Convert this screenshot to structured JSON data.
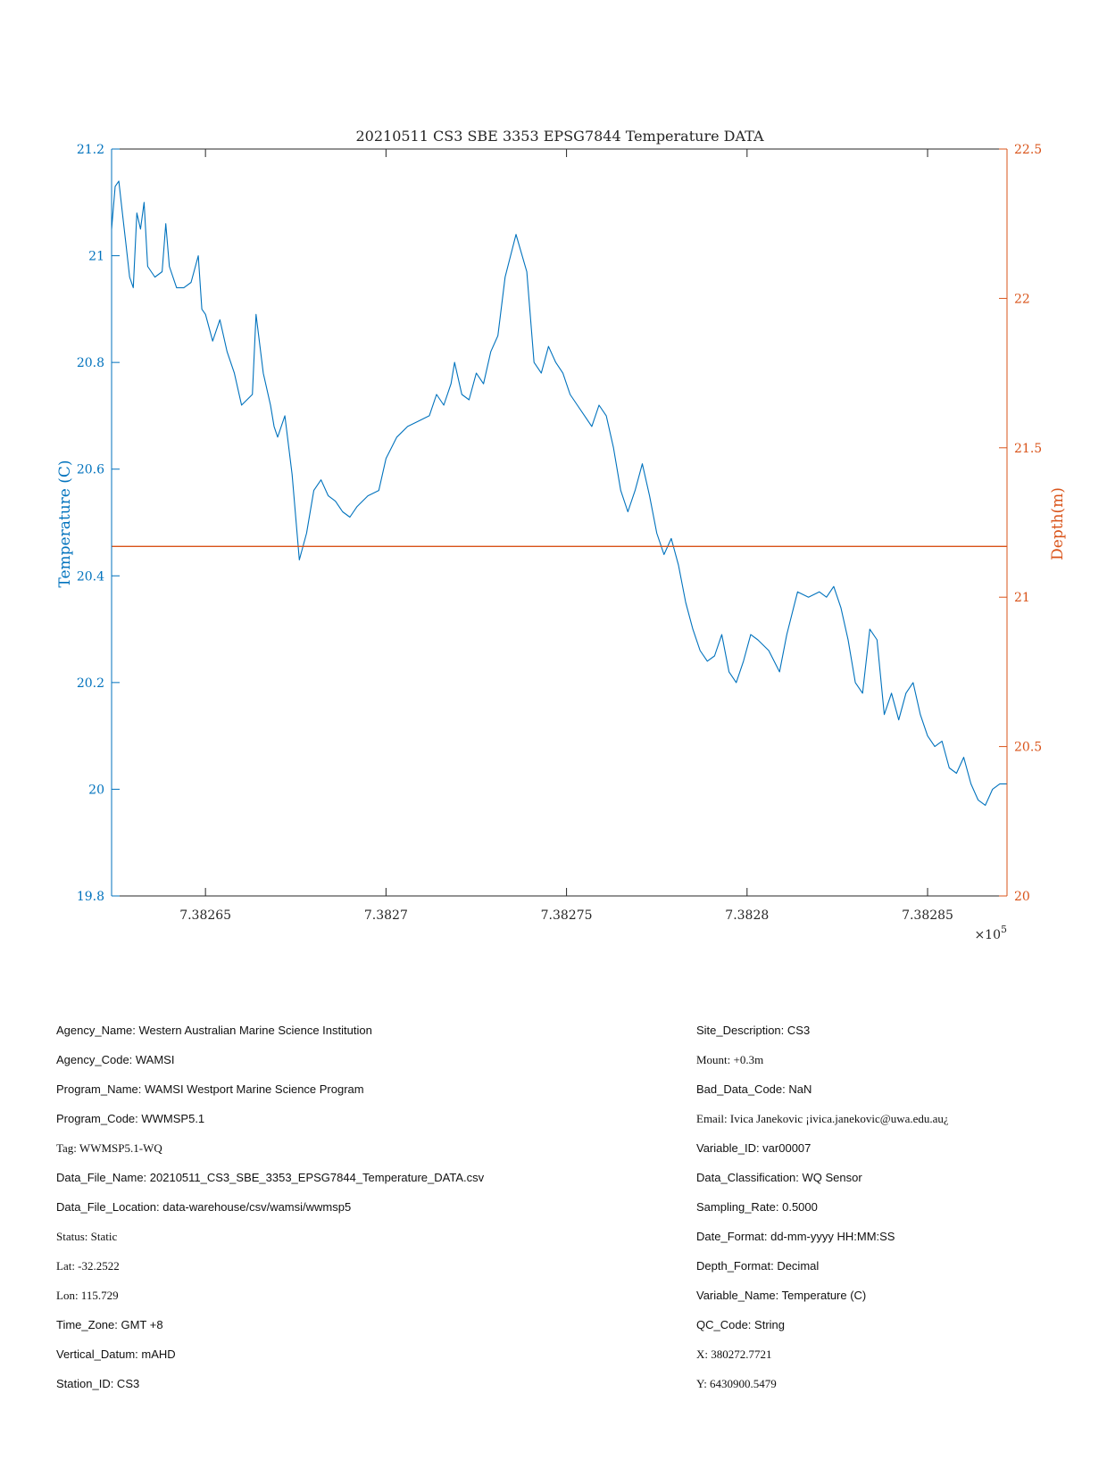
{
  "chart_data": {
    "type": "line",
    "title": "20210511 CS3 SBE 3353 EPSG7844 Temperature DATA",
    "ylabel_left": "Temperature (C)",
    "ylabel_right": "Depth(m)",
    "x_exponent_label": "×10",
    "x_exponent_power": "5",
    "xlim": [
      738262.4,
      738287.2
    ],
    "ylim_left": [
      19.8,
      21.2
    ],
    "ylim_right": [
      20,
      22.5
    ],
    "x_ticks": [
      738265,
      738270,
      738275,
      738280,
      738285
    ],
    "x_tick_labels": [
      "7.38265",
      "7.3827",
      "7.38275",
      "7.3828",
      "7.38285"
    ],
    "y_left_ticks": [
      19.8,
      20,
      20.2,
      20.4,
      20.6,
      20.8,
      21,
      21.2
    ],
    "y_left_tick_labels": [
      "19.8",
      "20",
      "20.2",
      "20.4",
      "20.6",
      "20.8",
      "21",
      "21.2"
    ],
    "y_right_ticks": [
      20,
      20.5,
      21,
      21.5,
      22,
      22.5
    ],
    "y_right_tick_labels": [
      "20",
      "20.5",
      "21",
      "21.5",
      "22",
      "22.5"
    ],
    "grid": false,
    "colors": {
      "temperature": "#0072BD",
      "depth": "#D95319",
      "axes": "#262626"
    },
    "series": [
      {
        "axis": "left",
        "x": [
          738262.4,
          738262.5,
          738262.6,
          738262.7,
          738262.8,
          738262.9,
          738263.0,
          738263.1,
          738263.2,
          738263.3,
          738263.4,
          738263.6,
          738263.8,
          738263.9,
          738264.0,
          738264.2,
          738264.4,
          738264.6,
          738264.8,
          738264.9,
          738265.0,
          738265.2,
          738265.4,
          738265.6,
          738265.8,
          738266.0,
          738266.3,
          738266.4,
          738266.6,
          738266.8,
          738266.9,
          738267.0,
          738267.2,
          738267.4,
          738267.6,
          738267.8,
          738268.0,
          738268.2,
          738268.4,
          738268.6,
          738268.8,
          738269.0,
          738269.2,
          738269.5,
          738269.8,
          738270.0,
          738270.3,
          738270.6,
          738270.9,
          738271.2,
          738271.4,
          738271.6,
          738271.8,
          738271.9,
          738272.1,
          738272.3,
          738272.5,
          738272.7,
          738272.9,
          738273.1,
          738273.3,
          738273.6,
          738273.9,
          738274.1,
          738274.3,
          738274.5,
          738274.7,
          738274.9,
          738275.1,
          738275.3,
          738275.5,
          738275.7,
          738275.9,
          738276.1,
          738276.3,
          738276.5,
          738276.7,
          738276.9,
          738277.1,
          738277.3,
          738277.5,
          738277.7,
          738277.9,
          738278.1,
          738278.3,
          738278.5,
          738278.7,
          738278.9,
          738279.1,
          738279.3,
          738279.5,
          738279.7,
          738279.9,
          738280.1,
          738280.3,
          738280.6,
          738280.9,
          738281.1,
          738281.4,
          738281.7,
          738282.0,
          738282.2,
          738282.4,
          738282.6,
          738282.8,
          738283.0,
          738283.2,
          738283.4,
          738283.6,
          738283.8,
          738284.0,
          738284.2,
          738284.4,
          738284.6,
          738284.8,
          738285.0,
          738285.2,
          738285.4,
          738285.6,
          738285.8,
          738286.0,
          738286.2,
          738286.4,
          738286.6,
          738286.8,
          738287.0,
          738287.2
        ],
        "values": [
          21.05,
          21.13,
          21.14,
          21.08,
          21.02,
          20.96,
          20.94,
          21.08,
          21.05,
          21.1,
          20.98,
          20.96,
          20.97,
          21.06,
          20.98,
          20.94,
          20.94,
          20.95,
          21.0,
          20.9,
          20.89,
          20.84,
          20.88,
          20.82,
          20.78,
          20.72,
          20.74,
          20.89,
          20.78,
          20.72,
          20.68,
          20.66,
          20.7,
          20.59,
          20.43,
          20.48,
          20.56,
          20.58,
          20.55,
          20.54,
          20.52,
          20.51,
          20.53,
          20.55,
          20.56,
          20.62,
          20.66,
          20.68,
          20.69,
          20.7,
          20.74,
          20.72,
          20.76,
          20.8,
          20.74,
          20.73,
          20.78,
          20.76,
          20.82,
          20.85,
          20.96,
          21.04,
          20.97,
          20.8,
          20.78,
          20.83,
          20.8,
          20.78,
          20.74,
          20.72,
          20.7,
          20.68,
          20.72,
          20.7,
          20.64,
          20.56,
          20.52,
          20.56,
          20.61,
          20.55,
          20.48,
          20.44,
          20.47,
          20.42,
          20.35,
          20.3,
          20.26,
          20.24,
          20.25,
          20.29,
          20.22,
          20.2,
          20.24,
          20.29,
          20.28,
          20.26,
          20.22,
          20.29,
          20.37,
          20.36,
          20.37,
          20.36,
          20.38,
          20.34,
          20.28,
          20.2,
          20.18,
          20.3,
          20.28,
          20.14,
          20.18,
          20.13,
          20.18,
          20.2,
          20.14,
          20.1,
          20.08,
          20.09,
          20.04,
          20.03,
          20.06,
          20.01,
          19.98,
          19.97,
          20.0,
          20.01,
          20.01
        ],
        "source_note": ""
      },
      {
        "axis": "right",
        "x": [
          738262.4,
          738287.2
        ],
        "values": [
          21.17,
          21.17
        ]
      }
    ]
  },
  "metadata_left": [
    {
      "text": "Agency_Name: Western Australian Marine Science Institution",
      "style": "sans"
    },
    {
      "text": "Agency_Code: WAMSI",
      "style": "sans"
    },
    {
      "text": "Program_Name: WAMSI Westport Marine Science Program",
      "style": "sans"
    },
    {
      "text": "Program_Code: WWMSP5.1",
      "style": "sans"
    },
    {
      "text": "Tag: WWMSP5.1-WQ",
      "style": "serif"
    },
    {
      "text": "Data_File_Name: 20210511_CS3_SBE_3353_EPSG7844_Temperature_DATA.csv",
      "style": "sans"
    },
    {
      "text": "Data_File_Location: data-warehouse/csv/wamsi/wwmsp5",
      "style": "sans"
    },
    {
      "text": "Status: Static",
      "style": "serif"
    },
    {
      "text": "Lat: -32.2522",
      "style": "serif"
    },
    {
      "text": "Lon: 115.729",
      "style": "serif"
    },
    {
      "text": "Time_Zone: GMT +8",
      "style": "sans"
    },
    {
      "text": "Vertical_Datum: mAHD",
      "style": "sans"
    },
    {
      "text": "Station_ID: CS3",
      "style": "sans"
    }
  ],
  "metadata_right": [
    {
      "text": "Site_Description: CS3",
      "style": "sans"
    },
    {
      "text": "Mount: +0.3m",
      "style": "serif"
    },
    {
      "text": "Bad_Data_Code: NaN",
      "style": "sans"
    },
    {
      "text": "Email: Ivica Janekovic ¡ivica.janekovic@uwa.edu.au¿",
      "style": "serif"
    },
    {
      "text": "Variable_ID: var00007",
      "style": "sans"
    },
    {
      "text": "Data_Classification: WQ Sensor",
      "style": "sans"
    },
    {
      "text": "Sampling_Rate: 0.5000",
      "style": "sans"
    },
    {
      "text": "Date_Format: dd-mm-yyyy HH:MM:SS",
      "style": "sans"
    },
    {
      "text": "Depth_Format: Decimal",
      "style": "sans"
    },
    {
      "text": "Variable_Name: Temperature (C)",
      "style": "sans"
    },
    {
      "text": "QC_Code: String",
      "style": "sans"
    },
    {
      "text": "X: 380272.7721",
      "style": "serif"
    },
    {
      "text": "Y: 6430900.5479",
      "style": "serif"
    }
  ]
}
